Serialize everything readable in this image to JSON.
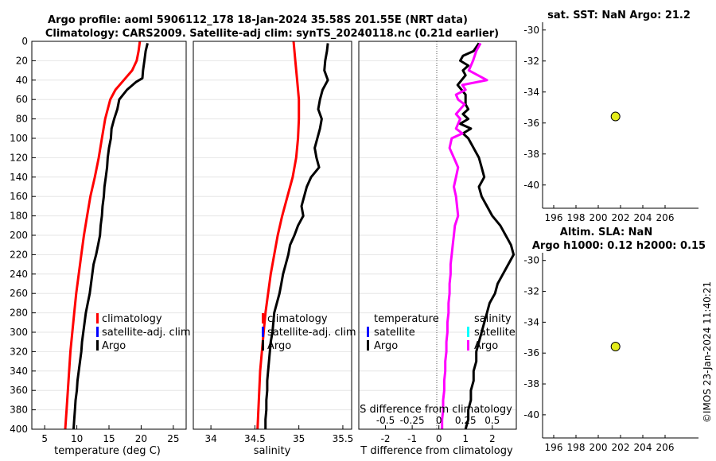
{
  "title": {
    "line1": "Argo profile: aoml 5906112_178 18-Jan-2024 35.58S 201.55E (NRT data)",
    "line2": "Climatology: CARS2009. Satellite-adj clim: synTS_20240118.nc (0.21d earlier)"
  },
  "stamp": "©IMOS 23-Jan-2024 11:40:21",
  "colors": {
    "red": "#ff0000",
    "blue": "#0000ff",
    "black": "#000000",
    "magenta": "#ff00ff",
    "cyan": "#00ffff",
    "marker": "#e3ec1a"
  },
  "chart_data": [
    {
      "id": "temperature",
      "type": "line",
      "xlabel": "temperature (deg C)",
      "ylabel": "",
      "xlim": [
        3,
        27
      ],
      "ylim": [
        400,
        0
      ],
      "xticks": [
        5,
        10,
        15,
        20,
        25
      ],
      "yticks": [
        0,
        20,
        40,
        60,
        80,
        100,
        120,
        140,
        160,
        180,
        200,
        220,
        240,
        260,
        280,
        300,
        320,
        340,
        360,
        380,
        400
      ],
      "legend": [
        "climatology",
        "satellite-adj. clim",
        "Argo"
      ],
      "series": [
        {
          "name": "climatology",
          "color": "#ff0000",
          "depth": [
            0,
            10,
            20,
            30,
            40,
            50,
            60,
            80,
            100,
            120,
            140,
            160,
            180,
            200,
            220,
            240,
            260,
            280,
            300,
            320,
            340,
            360,
            380,
            400
          ],
          "values": [
            19.8,
            19.6,
            19.3,
            18.6,
            17.3,
            16.0,
            15.2,
            14.4,
            13.9,
            13.4,
            12.8,
            12.1,
            11.6,
            11.1,
            10.7,
            10.3,
            9.9,
            9.6,
            9.3,
            9.0,
            8.8,
            8.6,
            8.4,
            8.2
          ]
        },
        {
          "name": "Argo",
          "color": "#000000",
          "depth": [
            2,
            10,
            20,
            30,
            38,
            42,
            50,
            60,
            70,
            80,
            90,
            100,
            110,
            120,
            130,
            140,
            150,
            160,
            170,
            180,
            190,
            200,
            210,
            220,
            230,
            240,
            250,
            260,
            270,
            280,
            290,
            300,
            310,
            320,
            330,
            340,
            350,
            360,
            370,
            380,
            390,
            400
          ],
          "values": [
            21.0,
            20.7,
            20.5,
            20.3,
            20.2,
            19.2,
            17.8,
            16.6,
            16.3,
            15.8,
            15.4,
            15.3,
            15.0,
            14.8,
            14.7,
            14.5,
            14.3,
            14.2,
            14.0,
            13.9,
            13.7,
            13.6,
            13.3,
            13.0,
            12.6,
            12.4,
            12.2,
            12.0,
            11.7,
            11.4,
            11.2,
            11.0,
            10.8,
            10.7,
            10.5,
            10.3,
            10.1,
            10.0,
            9.8,
            9.7,
            9.6,
            9.5
          ]
        }
      ]
    },
    {
      "id": "salinity",
      "type": "line",
      "xlabel": "salinity",
      "xlim": [
        33.8,
        35.6
      ],
      "ylim": [
        400,
        0
      ],
      "xticks": [
        34,
        34.5,
        35,
        35.5
      ],
      "legend": [
        "climatology",
        "satellite-adj. clim",
        "Argo"
      ],
      "series": [
        {
          "name": "climatology",
          "color": "#ff0000",
          "depth": [
            0,
            20,
            40,
            60,
            80,
            100,
            120,
            140,
            160,
            180,
            200,
            220,
            240,
            260,
            280,
            300,
            320,
            340,
            360,
            380,
            400
          ],
          "values": [
            34.94,
            34.96,
            34.98,
            35.0,
            35.0,
            34.99,
            34.97,
            34.93,
            34.87,
            34.81,
            34.76,
            34.72,
            34.68,
            34.65,
            34.62,
            34.6,
            34.58,
            34.56,
            34.55,
            34.54,
            34.53
          ]
        },
        {
          "name": "Argo",
          "color": "#000000",
          "depth": [
            2,
            10,
            20,
            30,
            40,
            50,
            60,
            70,
            80,
            90,
            100,
            110,
            120,
            130,
            140,
            150,
            160,
            170,
            180,
            190,
            200,
            210,
            220,
            230,
            240,
            250,
            260,
            270,
            280,
            290,
            300,
            310,
            320,
            330,
            340,
            350,
            360,
            370,
            380,
            390,
            400
          ],
          "values": [
            35.33,
            35.32,
            35.3,
            35.29,
            35.33,
            35.27,
            35.24,
            35.22,
            35.26,
            35.24,
            35.21,
            35.18,
            35.2,
            35.23,
            35.14,
            35.09,
            35.06,
            35.03,
            35.05,
            34.99,
            34.95,
            34.9,
            34.88,
            34.85,
            34.82,
            34.8,
            34.78,
            34.75,
            34.72,
            34.71,
            34.7,
            34.68,
            34.67,
            34.66,
            34.65,
            34.64,
            34.64,
            34.63,
            34.63,
            34.62,
            34.62
          ]
        }
      ]
    },
    {
      "id": "difference",
      "type": "line",
      "xlabel": "T difference from climatology",
      "xlabel2": "S difference from climatology",
      "xlim": [
        -3,
        2.9
      ],
      "ylim": [
        400,
        0
      ],
      "xticks": [
        -2,
        -1,
        0,
        1,
        2
      ],
      "x2lim": [
        -0.75,
        0.725
      ],
      "x2ticks": [
        -0.5,
        -0.25,
        0,
        0.25,
        0.5
      ],
      "x2ticklabels": [
        "-0.5",
        "-0.25",
        "0",
        "0.25",
        "0.5"
      ],
      "legend_left": {
        "heading": "temperature",
        "items": [
          "satellite",
          "Argo"
        ]
      },
      "legend_right": {
        "heading": "salinity",
        "items": [
          "satellite",
          "Argo"
        ]
      },
      "series": [
        {
          "name": "T difference (Argo)",
          "color": "#000000",
          "depth": [
            2,
            10,
            15,
            20,
            25,
            30,
            35,
            45,
            55,
            65,
            70,
            75,
            80,
            85,
            90,
            95,
            100,
            110,
            120,
            130,
            140,
            150,
            160,
            170,
            180,
            190,
            200,
            210,
            220,
            230,
            240,
            250,
            260,
            270,
            280,
            290,
            300,
            310,
            320,
            330,
            340,
            350,
            360,
            370,
            380,
            390,
            400
          ],
          "values": [
            1.5,
            1.3,
            0.9,
            0.8,
            1.1,
            0.9,
            1.0,
            0.7,
            1.0,
            1.0,
            1.1,
            0.9,
            1.1,
            0.8,
            1.2,
            0.9,
            1.1,
            1.3,
            1.5,
            1.6,
            1.7,
            1.5,
            1.6,
            1.8,
            2.0,
            2.3,
            2.5,
            2.7,
            2.8,
            2.6,
            2.4,
            2.2,
            2.1,
            1.9,
            1.8,
            1.7,
            1.6,
            1.5,
            1.4,
            1.4,
            1.3,
            1.3,
            1.2,
            1.2,
            1.1,
            1.1,
            1.0
          ]
        },
        {
          "name": "S difference (Argo)",
          "color": "#ff00ff",
          "depth": [
            2,
            10,
            20,
            30,
            40,
            45,
            50,
            55,
            60,
            65,
            70,
            75,
            80,
            85,
            90,
            95,
            100,
            110,
            120,
            130,
            140,
            150,
            160,
            170,
            180,
            190,
            200,
            210,
            220,
            230,
            240,
            250,
            260,
            270,
            280,
            290,
            300,
            310,
            320,
            330,
            340,
            350,
            360,
            370,
            380,
            390,
            400
          ],
          "values": [
            0.39,
            0.35,
            0.32,
            0.28,
            0.45,
            0.22,
            0.25,
            0.16,
            0.18,
            0.24,
            0.2,
            0.16,
            0.2,
            0.18,
            0.16,
            0.22,
            0.12,
            0.1,
            0.14,
            0.18,
            0.16,
            0.14,
            0.16,
            0.17,
            0.18,
            0.15,
            0.14,
            0.13,
            0.12,
            0.11,
            0.11,
            0.1,
            0.1,
            0.09,
            0.09,
            0.08,
            0.08,
            0.07,
            0.07,
            0.06,
            0.06,
            0.05,
            0.05,
            0.04,
            0.04,
            0.03,
            0.03
          ]
        }
      ]
    },
    {
      "id": "sst_map",
      "type": "scatter",
      "title": "sat. SST: NaN Argo: 21.2",
      "xlim": [
        195,
        209
      ],
      "ylim": [
        -41.5,
        -29.5
      ],
      "xticks": [
        196,
        198,
        200,
        202,
        204,
        206
      ],
      "yticks": [
        -30,
        -32,
        -34,
        -36,
        -38,
        -40
      ],
      "points": [
        {
          "x": 201.55,
          "y": -35.58
        }
      ]
    },
    {
      "id": "sla_map",
      "type": "scatter",
      "title_line1": "Altim. SLA: NaN",
      "title_line2": "Argo h1000: 0.12 h2000: 0.15",
      "xlim": [
        195,
        209
      ],
      "ylim": [
        -41.5,
        -29.5
      ],
      "xticks": [
        196,
        198,
        200,
        202,
        204,
        206
      ],
      "yticks": [
        -30,
        -32,
        -34,
        -36,
        -38,
        -40
      ],
      "points": [
        {
          "x": 201.55,
          "y": -35.58
        }
      ]
    }
  ]
}
